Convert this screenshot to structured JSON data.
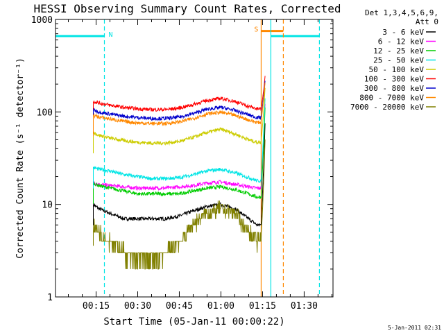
{
  "chart_data": {
    "type": "line",
    "title": "HESSI Observing Summary Count Rates, Corrected",
    "xlabel": "Start Time (05-Jan-11 00:00:22)",
    "ylabel": "Corrected Count Rate (s⁻¹ detector⁻¹)",
    "yscale": "log",
    "xlim_minutes": [
      0.37,
      100.4
    ],
    "ylim": [
      1,
      1000
    ],
    "xticks": [
      {
        "t": 15,
        "label": "00:15"
      },
      {
        "t": 30,
        "label": "00:30"
      },
      {
        "t": 45,
        "label": "00:45"
      },
      {
        "t": 60,
        "label": "01:00"
      },
      {
        "t": 75,
        "label": "01:15"
      },
      {
        "t": 90,
        "label": "01:30"
      }
    ],
    "yticks": [
      {
        "v": 1,
        "label": "1"
      },
      {
        "v": 10,
        "label": "10"
      },
      {
        "v": 100,
        "label": "100"
      },
      {
        "v": 1000,
        "label": "1000"
      }
    ],
    "legend_header": [
      "Det 1,3,4,5,6,9,",
      "Att 0"
    ],
    "legend_position": "right",
    "series": [
      {
        "name": "3 - 6 keV",
        "color": "#000000",
        "x": [
          14,
          16,
          20,
          25,
          30,
          35,
          40,
          45,
          50,
          55,
          60,
          65,
          70,
          73,
          74.5,
          75.5,
          76
        ],
        "values": [
          10,
          9,
          8,
          7,
          7,
          7,
          7,
          7.5,
          8.5,
          9.5,
          10,
          9,
          7,
          6,
          6,
          30,
          90
        ]
      },
      {
        "name": "6 - 12 keV",
        "color": "#ff00ff",
        "x": [
          14,
          16,
          20,
          25,
          30,
          35,
          40,
          45,
          50,
          55,
          60,
          65,
          70,
          73,
          74.5,
          75.5,
          76
        ],
        "values": [
          17,
          16.5,
          16,
          15.5,
          15,
          15,
          15,
          15.5,
          16,
          17,
          17.5,
          16.5,
          15.5,
          15,
          15,
          60,
          140
        ]
      },
      {
        "name": "12 - 25 keV",
        "color": "#00cc00",
        "x": [
          14,
          16,
          20,
          25,
          30,
          35,
          40,
          45,
          50,
          55,
          60,
          65,
          70,
          73,
          74.5,
          75.5,
          76
        ],
        "values": [
          17,
          16,
          15,
          14,
          13,
          13,
          13,
          13,
          14,
          15,
          15.5,
          14.5,
          13,
          12,
          12,
          50,
          130
        ]
      },
      {
        "name": "25 - 50 keV",
        "color": "#00e5e5",
        "x": [
          14,
          16,
          20,
          25,
          30,
          35,
          40,
          45,
          50,
          55,
          60,
          65,
          70,
          73,
          74.5,
          75.5,
          76
        ],
        "values": [
          25,
          24,
          23,
          21,
          20,
          19,
          19,
          19.5,
          21,
          23,
          24,
          22,
          19.5,
          18,
          18,
          70,
          160
        ]
      },
      {
        "name": "50 - 100 keV",
        "color": "#cccc00",
        "x": [
          14,
          16,
          20,
          25,
          30,
          35,
          40,
          45,
          50,
          55,
          60,
          65,
          70,
          73,
          74.5,
          75.5,
          76
        ],
        "values": [
          60,
          56,
          52,
          49,
          47,
          46,
          46,
          48,
          53,
          60,
          65,
          58,
          50,
          47,
          47,
          110,
          200
        ]
      },
      {
        "name": "100 - 300 keV",
        "color": "#ff0000",
        "x": [
          14,
          16,
          20,
          25,
          30,
          35,
          40,
          45,
          50,
          55,
          60,
          65,
          70,
          73,
          74.5,
          75.5,
          76
        ],
        "values": [
          130,
          125,
          118,
          112,
          108,
          106,
          106,
          110,
          120,
          133,
          140,
          130,
          115,
          108,
          108,
          180,
          260
        ]
      },
      {
        "name": "300 - 800 keV",
        "color": "#0000cc",
        "x": [
          14,
          16,
          20,
          25,
          30,
          35,
          40,
          45,
          50,
          55,
          60,
          65,
          70,
          73,
          74.5,
          75.5,
          76
        ],
        "values": [
          106,
          100,
          95,
          90,
          87,
          85,
          85,
          88,
          96,
          107,
          112,
          104,
          93,
          87,
          87,
          160,
          230
        ]
      },
      {
        "name": "800 - 7000 keV",
        "color": "#ff8800",
        "x": [
          14,
          16,
          20,
          25,
          30,
          35,
          40,
          45,
          50,
          55,
          60,
          65,
          70,
          73,
          74.5,
          75.5,
          76
        ],
        "values": [
          92,
          88,
          84,
          79,
          76,
          75,
          75,
          78,
          85,
          95,
          99,
          92,
          82,
          77,
          77,
          150,
          220
        ]
      },
      {
        "name": "7000 - 20000 keV",
        "color": "#808000",
        "x": [
          14,
          16,
          20,
          25,
          30,
          35,
          40,
          45,
          50,
          55,
          60,
          65,
          70,
          73,
          74.5,
          75.5,
          76
        ],
        "values": [
          6,
          5,
          4,
          3,
          2.5,
          2.5,
          3,
          4,
          6,
          8,
          9,
          8,
          5,
          4,
          4,
          20,
          60
        ]
      }
    ],
    "annotations": [
      {
        "type": "hbar",
        "label": "N",
        "color": "#00e5e5",
        "x1": 0.37,
        "x2": 18,
        "y": 660
      },
      {
        "type": "hbar",
        "label": "",
        "color": "#00e5e5",
        "x1": 78,
        "x2": 95.5,
        "y": 660
      },
      {
        "type": "hbar",
        "label": "S",
        "color": "#ff8800",
        "x1": 74.5,
        "x2": 82.5,
        "y": 750
      },
      {
        "type": "vline",
        "color": "#00e5e5",
        "x": 18,
        "style": "dashed"
      },
      {
        "type": "vline",
        "color": "#00e5e5",
        "x": 78,
        "style": "solid"
      },
      {
        "type": "vline",
        "color": "#00e5e5",
        "x": 95.5,
        "style": "dashed"
      },
      {
        "type": "vline",
        "color": "#ff8800",
        "x": 74.5,
        "style": "solid"
      },
      {
        "type": "vline",
        "color": "#ff8800",
        "x": 82.5,
        "style": "dashed"
      }
    ],
    "footer_timestamp": "5-Jan-2011 02:31"
  }
}
